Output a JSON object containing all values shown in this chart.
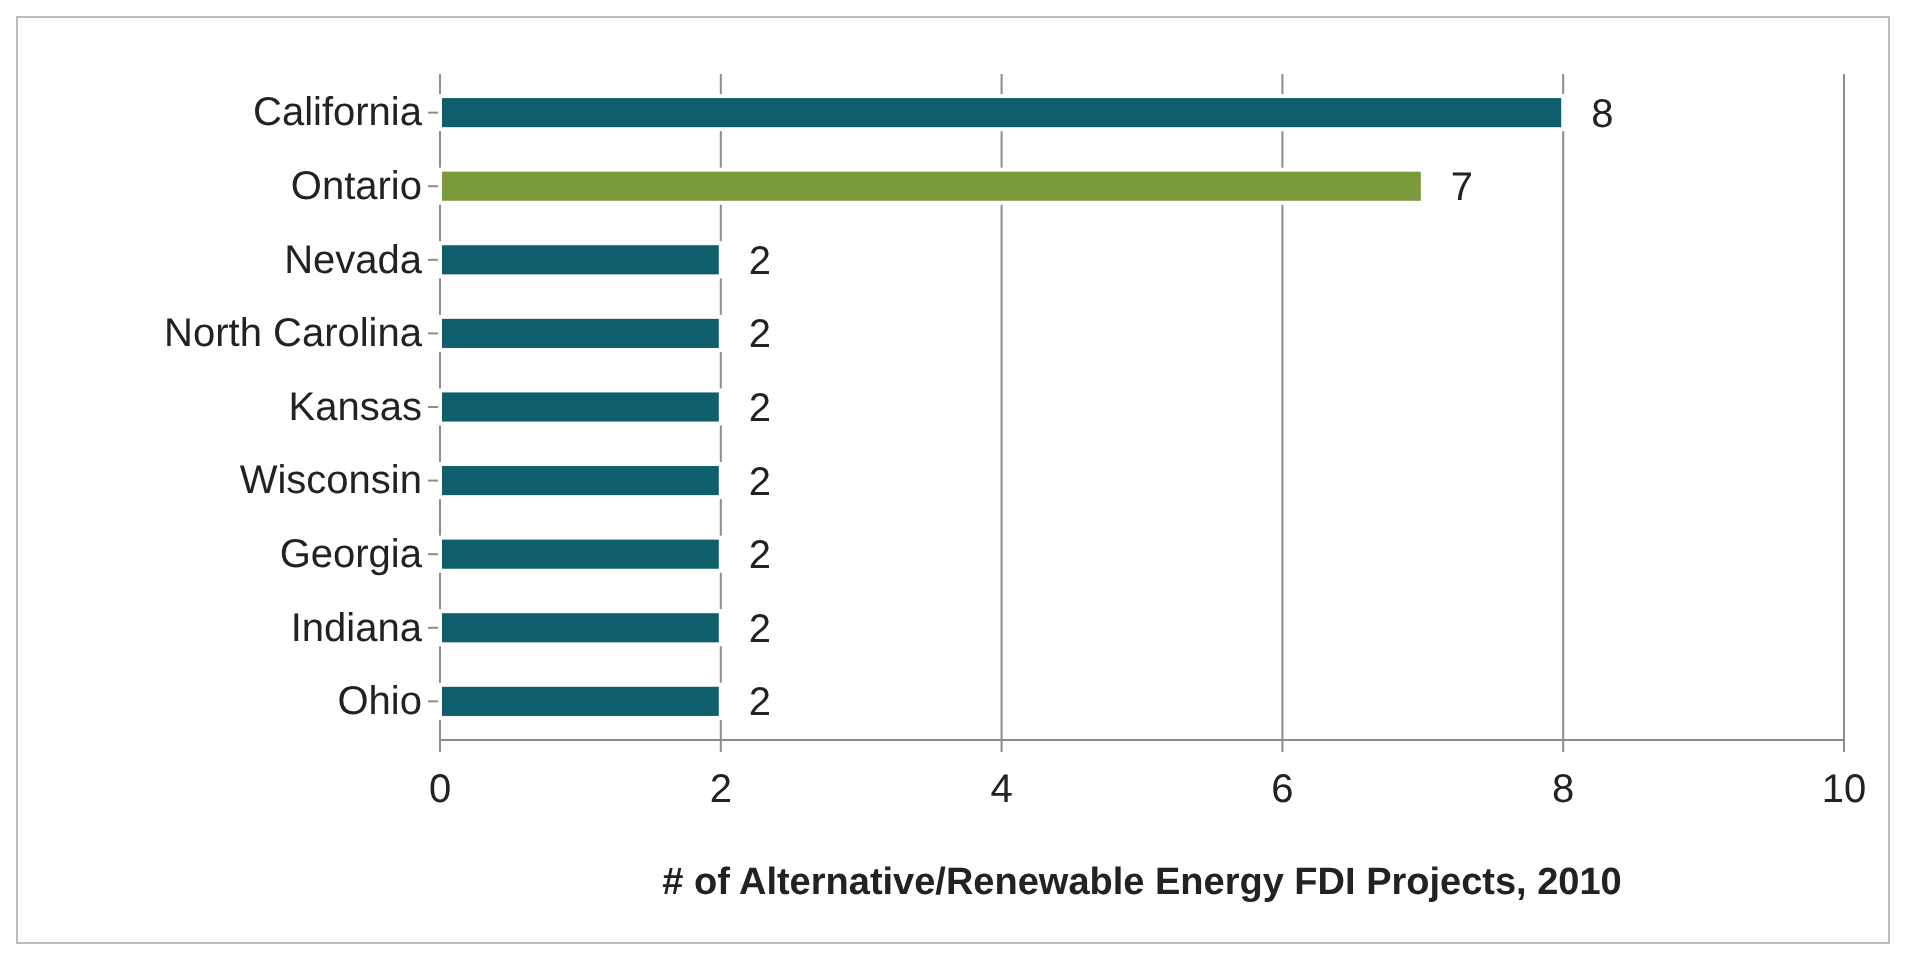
{
  "chart_data": {
    "type": "bar",
    "orientation": "horizontal",
    "xlabel": "# of Alternative/Renewable Energy FDI Projects, 2010",
    "categories": [
      "California",
      "Ontario",
      "Nevada",
      "North Carolina",
      "Kansas",
      "Wisconsin",
      "Georgia",
      "Indiana",
      "Ohio"
    ],
    "values": [
      8,
      7,
      2,
      2,
      2,
      2,
      2,
      2,
      2
    ],
    "colors": [
      "#0e5f6b",
      "#7a9a3c",
      "#0e5f6b",
      "#0e5f6b",
      "#0e5f6b",
      "#0e5f6b",
      "#0e5f6b",
      "#0e5f6b",
      "#0e5f6b"
    ],
    "xlim": [
      0,
      10
    ],
    "xticks": [
      0,
      2,
      4,
      6,
      8,
      10
    ],
    "grid": "x",
    "data_labels": true
  }
}
